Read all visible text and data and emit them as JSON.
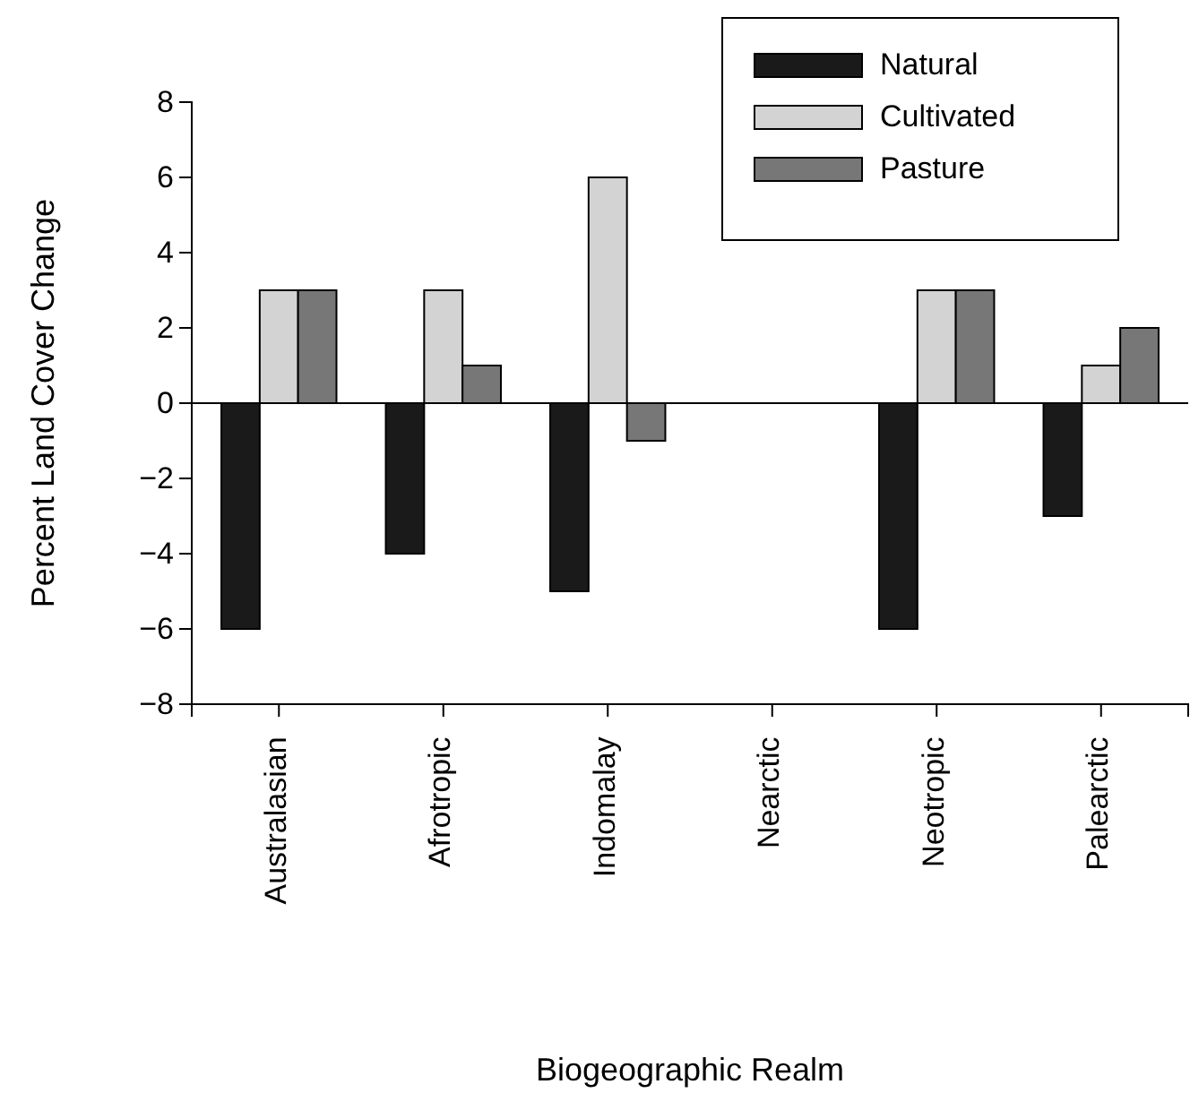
{
  "chart_data": {
    "type": "bar",
    "xlabel": "Biogeographic Realm",
    "ylabel": "Percent Land Cover Change",
    "categories": [
      "Australasian",
      "Afrotropic",
      "Indomalay",
      "Nearctic",
      "Neotropic",
      "Palearctic"
    ],
    "series": [
      {
        "name": "Natural",
        "color": "#1a1a1a",
        "values": [
          -6,
          -4,
          -5,
          0,
          -6,
          -3
        ]
      },
      {
        "name": "Cultivated",
        "color": "#d3d3d3",
        "values": [
          3,
          3,
          6,
          0,
          3,
          1
        ]
      },
      {
        "name": "Pasture",
        "color": "#777777",
        "values": [
          3,
          1,
          -1,
          0,
          3,
          2
        ]
      }
    ],
    "ylim": [
      -8,
      8
    ],
    "yticks": [
      -8,
      -6,
      -4,
      -2,
      0,
      2,
      4,
      6,
      8
    ],
    "legend": "top right",
    "grid": false,
    "ref_lines": [
      {
        "axis": "y",
        "value": 0,
        "color": "#000000"
      }
    ]
  }
}
